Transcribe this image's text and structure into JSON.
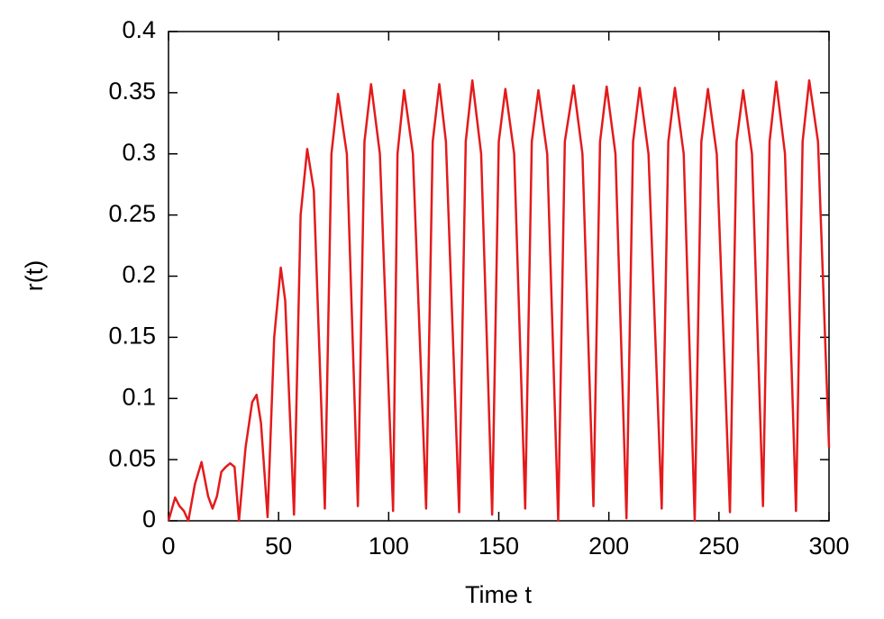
{
  "chart_data": {
    "type": "line",
    "x_label": "Time t",
    "y_label": "r(t)",
    "x": [
      0,
      3,
      5,
      7,
      9,
      12,
      15,
      18,
      20,
      22,
      24,
      26,
      28,
      30,
      32,
      35,
      38,
      40,
      42,
      45,
      48,
      51,
      53,
      57,
      60,
      63,
      66,
      71,
      74,
      77,
      81,
      86,
      89,
      92,
      96,
      102,
      104,
      107,
      111,
      117,
      120,
      123,
      126,
      132,
      135,
      138,
      142,
      147,
      150,
      153,
      157,
      162,
      165,
      168,
      172,
      177,
      180,
      184,
      188,
      193,
      196,
      199,
      203,
      208,
      211,
      214,
      218,
      224,
      227,
      230,
      234,
      239,
      242,
      245,
      249,
      255,
      258,
      261,
      265,
      270,
      273,
      276,
      280,
      285,
      288,
      291,
      295,
      300
    ],
    "series": [
      {
        "name": "r(t)",
        "color": "#e41a1c",
        "values": [
          0,
          0.019,
          0.012,
          0.008,
          0,
          0.03,
          0.048,
          0.02,
          0.01,
          0.02,
          0.04,
          0.044,
          0.047,
          0.044,
          0,
          0.06,
          0.097,
          0.103,
          0.08,
          0.003,
          0.15,
          0.207,
          0.18,
          0.005,
          0.25,
          0.304,
          0.27,
          0.01,
          0.3,
          0.349,
          0.3,
          0.012,
          0.31,
          0.357,
          0.3,
          0.008,
          0.3,
          0.352,
          0.3,
          0.01,
          0.31,
          0.357,
          0.31,
          0.007,
          0.31,
          0.36,
          0.3,
          0.005,
          0.31,
          0.353,
          0.3,
          0.01,
          0.31,
          0.352,
          0.3,
          0,
          0.31,
          0.356,
          0.3,
          0.012,
          0.31,
          0.355,
          0.3,
          0.002,
          0.31,
          0.354,
          0.3,
          0.01,
          0.31,
          0.354,
          0.3,
          0,
          0.31,
          0.353,
          0.3,
          0.007,
          0.31,
          0.352,
          0.3,
          0.012,
          0.31,
          0.359,
          0.3,
          0.008,
          0.31,
          0.36,
          0.31,
          0.06
        ]
      }
    ],
    "xlim": [
      0,
      300
    ],
    "xticks": [
      0,
      50,
      100,
      150,
      200,
      250,
      300
    ],
    "ylim": [
      0,
      0.4
    ],
    "yticks": [
      0,
      0.05,
      0.1,
      0.15,
      0.2,
      0.25,
      0.3,
      0.35,
      0.4
    ]
  }
}
